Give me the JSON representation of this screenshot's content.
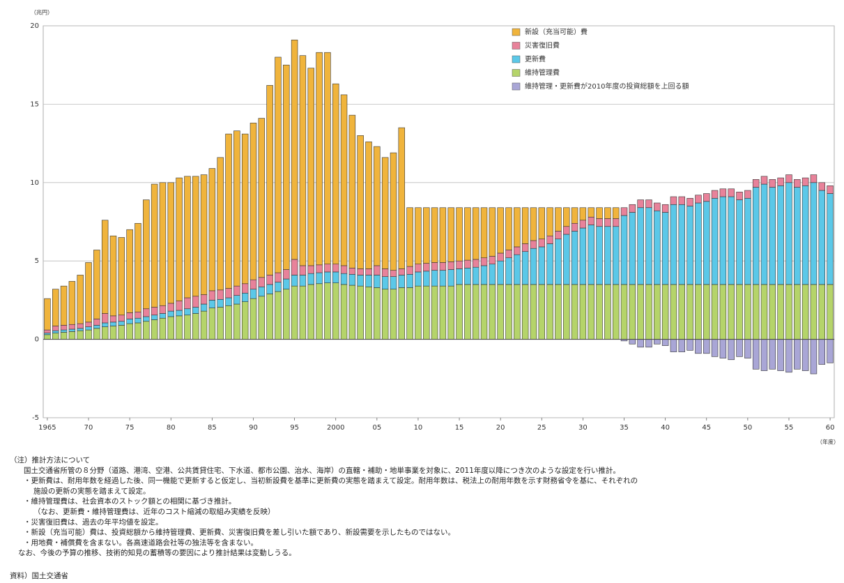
{
  "chart_data": {
    "type": "stacked-bar",
    "y_label": "（兆円）",
    "x_label": "（年度）",
    "x": [
      1965,
      1966,
      1967,
      1968,
      1969,
      1970,
      1971,
      1972,
      1973,
      1974,
      1975,
      1976,
      1977,
      1978,
      1979,
      1980,
      1981,
      1982,
      1983,
      1984,
      1985,
      1986,
      1987,
      1988,
      1989,
      1990,
      1991,
      1992,
      1993,
      1994,
      1995,
      1996,
      1997,
      1998,
      1999,
      2000,
      2001,
      2002,
      2003,
      2004,
      2005,
      2006,
      2007,
      2008,
      2009,
      2010,
      2011,
      2012,
      2013,
      2014,
      2015,
      2016,
      2017,
      2018,
      2019,
      2020,
      2021,
      2022,
      2023,
      2024,
      2025,
      2026,
      2027,
      2028,
      2029,
      2030,
      2031,
      2032,
      2033,
      2034,
      2035,
      2036,
      2037,
      2038,
      2039,
      2040,
      2041,
      2042,
      2043,
      2044,
      2045,
      2046,
      2047,
      2048,
      2049,
      2050,
      2051,
      2052,
      2053,
      2054,
      2055,
      2056,
      2057,
      2058,
      2059,
      2060
    ],
    "series": [
      {
        "name": "新設（充当可能）費",
        "color": "#f0b43c",
        "values": [
          2.0,
          2.35,
          2.5,
          2.75,
          3.1,
          3.8,
          4.4,
          5.95,
          5.1,
          4.95,
          5.3,
          5.65,
          6.95,
          7.85,
          7.85,
          7.7,
          7.85,
          7.75,
          7.65,
          7.65,
          7.8,
          8.45,
          9.85,
          9.9,
          9.55,
          10.0,
          10.15,
          12.1,
          13.75,
          13.05,
          14.0,
          13.4,
          12.6,
          13.55,
          13.5,
          11.5,
          10.9,
          9.75,
          8.5,
          8.1,
          7.6,
          7.1,
          7.5,
          9.0,
          3.75,
          3.6,
          3.55,
          3.5,
          3.5,
          3.45,
          3.4,
          3.35,
          3.3,
          3.2,
          3.1,
          2.9,
          2.7,
          2.5,
          2.3,
          2.1,
          2.0,
          1.8,
          1.5,
          1.2,
          1.0,
          0.8,
          0.6,
          0.7,
          0.7,
          0.7,
          0,
          0,
          0,
          0,
          0,
          0,
          0,
          0,
          0,
          0,
          0,
          0,
          0,
          0,
          0,
          0,
          0,
          0,
          0,
          0,
          0,
          0,
          0,
          0,
          0,
          0
        ]
      },
      {
        "name": "災害復旧費",
        "color": "#e8829a",
        "values": [
          0.2,
          0.3,
          0.3,
          0.3,
          0.3,
          0.3,
          0.4,
          0.6,
          0.4,
          0.4,
          0.4,
          0.4,
          0.5,
          0.5,
          0.5,
          0.5,
          0.6,
          0.7,
          0.7,
          0.6,
          0.6,
          0.6,
          0.6,
          0.6,
          0.6,
          0.6,
          0.6,
          0.6,
          0.6,
          0.6,
          1.0,
          0.6,
          0.5,
          0.5,
          0.5,
          0.5,
          0.5,
          0.4,
          0.4,
          0.4,
          0.6,
          0.5,
          0.4,
          0.4,
          0.5,
          0.5,
          0.5,
          0.5,
          0.5,
          0.5,
          0.5,
          0.5,
          0.5,
          0.5,
          0.5,
          0.5,
          0.5,
          0.5,
          0.5,
          0.5,
          0.5,
          0.5,
          0.5,
          0.5,
          0.5,
          0.5,
          0.5,
          0.5,
          0.5,
          0.5,
          0.5,
          0.5,
          0.5,
          0.5,
          0.5,
          0.5,
          0.5,
          0.5,
          0.5,
          0.5,
          0.5,
          0.5,
          0.5,
          0.5,
          0.5,
          0.5,
          0.5,
          0.5,
          0.5,
          0.5,
          0.5,
          0.5,
          0.5,
          0.5,
          0.5,
          0.5
        ]
      },
      {
        "name": "更新費",
        "color": "#5bc8e8",
        "values": [
          0.1,
          0.15,
          0.15,
          0.15,
          0.15,
          0.2,
          0.2,
          0.25,
          0.25,
          0.25,
          0.3,
          0.3,
          0.3,
          0.3,
          0.3,
          0.35,
          0.35,
          0.4,
          0.4,
          0.45,
          0.5,
          0.5,
          0.5,
          0.55,
          0.55,
          0.6,
          0.6,
          0.6,
          0.6,
          0.65,
          0.7,
          0.7,
          0.7,
          0.7,
          0.7,
          0.7,
          0.7,
          0.7,
          0.7,
          0.75,
          0.8,
          0.8,
          0.8,
          0.8,
          0.85,
          0.9,
          0.95,
          1.0,
          1.0,
          1.05,
          1.0,
          1.05,
          1.1,
          1.2,
          1.3,
          1.5,
          1.7,
          1.9,
          2.1,
          2.3,
          2.4,
          2.6,
          2.9,
          3.2,
          3.4,
          3.6,
          3.8,
          3.7,
          3.7,
          3.7,
          4.4,
          4.6,
          4.9,
          4.9,
          4.7,
          4.6,
          5.1,
          5.1,
          5.0,
          5.2,
          5.3,
          5.5,
          5.6,
          5.6,
          5.4,
          5.5,
          6.2,
          6.4,
          6.2,
          6.3,
          6.5,
          6.2,
          6.3,
          6.5,
          6.0,
          5.8
        ]
      },
      {
        "name": "維持管理費",
        "color": "#b5d46a",
        "values": [
          0.3,
          0.4,
          0.45,
          0.5,
          0.55,
          0.6,
          0.7,
          0.8,
          0.85,
          0.9,
          1.0,
          1.05,
          1.15,
          1.25,
          1.35,
          1.45,
          1.5,
          1.55,
          1.65,
          1.8,
          2.0,
          2.05,
          2.15,
          2.25,
          2.4,
          2.6,
          2.75,
          2.9,
          3.05,
          3.2,
          3.4,
          3.4,
          3.5,
          3.55,
          3.6,
          3.6,
          3.5,
          3.45,
          3.4,
          3.35,
          3.3,
          3.2,
          3.2,
          3.3,
          3.3,
          3.4,
          3.4,
          3.4,
          3.4,
          3.4,
          3.5,
          3.5,
          3.5,
          3.5,
          3.5,
          3.5,
          3.5,
          3.5,
          3.5,
          3.5,
          3.5,
          3.5,
          3.5,
          3.5,
          3.5,
          3.5,
          3.5,
          3.5,
          3.5,
          3.5,
          3.5,
          3.5,
          3.5,
          3.5,
          3.5,
          3.5,
          3.5,
          3.5,
          3.5,
          3.5,
          3.5,
          3.5,
          3.5,
          3.5,
          3.5,
          3.5,
          3.5,
          3.5,
          3.5,
          3.5,
          3.5,
          3.5,
          3.5,
          3.5,
          3.5,
          3.5
        ]
      },
      {
        "name": "維持管理・更新費が2010年度の投資総額を上回る額",
        "color": "#a9a6d6",
        "values": [
          0,
          0,
          0,
          0,
          0,
          0,
          0,
          0,
          0,
          0,
          0,
          0,
          0,
          0,
          0,
          0,
          0,
          0,
          0,
          0,
          0,
          0,
          0,
          0,
          0,
          0,
          0,
          0,
          0,
          0,
          0,
          0,
          0,
          0,
          0,
          0,
          0,
          0,
          0,
          0,
          0,
          0,
          0,
          0,
          0,
          0,
          0,
          0,
          0,
          0,
          0,
          0,
          0,
          0,
          0,
          0,
          0,
          0,
          0,
          0,
          0,
          0,
          0,
          0,
          0,
          0,
          0,
          0,
          0,
          0,
          -0.1,
          -0.3,
          -0.5,
          -0.5,
          -0.3,
          -0.4,
          -0.8,
          -0.8,
          -0.7,
          -0.9,
          -0.9,
          -1.1,
          -1.2,
          -1.3,
          -1.1,
          -1.2,
          -1.9,
          -2.0,
          -1.9,
          -2.0,
          -2.1,
          -1.9,
          -2.0,
          -2.2,
          -1.6,
          -1.5
        ]
      }
    ],
    "xlim": [
      1964.5,
      2060.5
    ],
    "xticks": [
      1965,
      {
        "value": 1970,
        "label": "70"
      },
      {
        "value": 1975,
        "label": "75"
      },
      {
        "value": 1980,
        "label": "80"
      },
      {
        "value": 1985,
        "label": "85"
      },
      {
        "value": 1990,
        "label": "90"
      },
      {
        "value": 1995,
        "label": "95"
      },
      2000,
      {
        "value": 2005,
        "label": "05"
      },
      {
        "value": 2010,
        "label": "10"
      },
      {
        "value": 2015,
        "label": "15"
      },
      {
        "value": 2020,
        "label": "20"
      },
      {
        "value": 2025,
        "label": "25"
      },
      {
        "value": 2030,
        "label": "30"
      },
      {
        "value": 2035,
        "label": "35"
      },
      {
        "value": 2040,
        "label": "40"
      },
      {
        "value": 2045,
        "label": "45"
      },
      {
        "value": 2050,
        "label": "50"
      },
      {
        "value": 2055,
        "label": "55"
      },
      {
        "value": 2060,
        "label": "60"
      }
    ],
    "ylim": [
      -5,
      20
    ],
    "yticks": [
      -5,
      0,
      5,
      10,
      15,
      20
    ],
    "grid": true,
    "legend": "upper right",
    "notes": [
      "（注）推計方法について",
      "国土交通省所管の８分野（道路、港湾、空港、公共賃貸住宅、下水道、都市公園、治水、海岸）の直轄・補助・地単事業を対象に、2011年度以降につき次のような設定を行い推計。",
      "・更新費は、耐用年数を経過した後、同一機能で更新すると仮定し、当初新設費を基準に更新費の実態を踏まえて設定。耐用年数は、税法上の耐用年数を示す財務省令を基に、それぞれの",
      "施設の更新の実態を踏まえて設定。",
      "・維持管理費は、社会資本のストック額との相関に基づき推計。",
      "（なお、更新費・維持管理費は、近年のコスト縮減の取組み実績を反映）",
      "・災害復旧費は、過去の年平均値を設定。",
      "・新設（充当可能）費は、投資総額から維持管理費、更新費、災害復旧費を差し引いた額であり、新設需要を示したものではない。",
      "・用地費・補償費を含まない。各高速道路会社等の独法等を含まない。",
      "なお、今後の予算の推移、技術的知見の蓄積等の要因により推計結果は変動しうる。"
    ],
    "source": "資料）国土交通省"
  }
}
